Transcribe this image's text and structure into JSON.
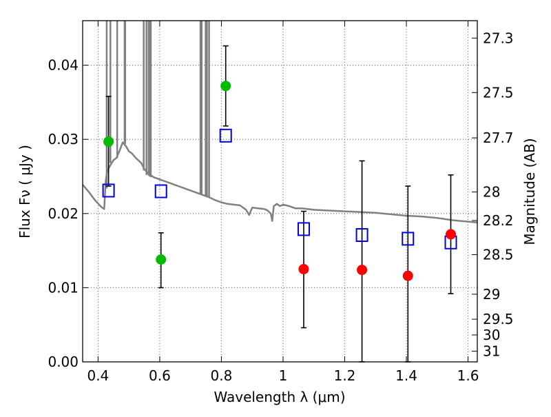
{
  "chart_data": {
    "type": "scatter",
    "title": "",
    "xlabel": "Wavelength  λ (μm)",
    "ylabel": "Flux  Fν  ( μJy )",
    "y2label": "Magnitude (AB)",
    "xlim": [
      0.35,
      1.63
    ],
    "ylim": [
      0.0,
      0.046
    ],
    "grid": true,
    "x_ticks": [
      {
        "value": 0.4,
        "label": "0.4"
      },
      {
        "value": 0.6,
        "label": "0.6"
      },
      {
        "value": 0.8,
        "label": "0.8"
      },
      {
        "value": 1.0,
        "label": "1"
      },
      {
        "value": 1.2,
        "label": "1.2"
      },
      {
        "value": 1.4,
        "label": "1.4"
      },
      {
        "value": 1.6,
        "label": "1.6"
      }
    ],
    "y_ticks": [
      {
        "value": 0.0,
        "label": "0.00"
      },
      {
        "value": 0.01,
        "label": "0.01"
      },
      {
        "value": 0.02,
        "label": "0.02"
      },
      {
        "value": 0.03,
        "label": "0.03"
      },
      {
        "value": 0.04,
        "label": "0.04"
      }
    ],
    "y2_ticks": [
      {
        "value": 27.3,
        "label": "27.3"
      },
      {
        "value": 27.5,
        "label": "27.5"
      },
      {
        "value": 27.7,
        "label": "27.7"
      },
      {
        "value": 28.0,
        "label": "28"
      },
      {
        "value": 28.2,
        "label": "28.2"
      },
      {
        "value": 28.5,
        "label": "28.5"
      },
      {
        "value": 29.0,
        "label": "29"
      },
      {
        "value": 29.5,
        "label": "29.5"
      },
      {
        "value": 30.0,
        "label": "30"
      },
      {
        "value": 31.0,
        "label": "31"
      }
    ],
    "colors": {
      "template": "#808080",
      "optical": "#00bb00",
      "nir": "#ff0000",
      "model": "#0000dd",
      "errorbar": "#000000",
      "grid": "#555555"
    },
    "series": [
      {
        "kind": "line",
        "points": [
          [
            0.35,
            0.0239
          ],
          [
            0.37,
            0.0229
          ],
          [
            0.39,
            0.0218
          ],
          [
            0.41,
            0.0209
          ],
          [
            0.42,
            0.0206
          ],
          [
            0.425,
            0.0245
          ],
          [
            0.43,
            0.0258
          ],
          [
            0.44,
            0.0265
          ],
          [
            0.45,
            0.0272
          ],
          [
            0.46,
            0.0275
          ],
          [
            0.47,
            0.0285
          ],
          [
            0.48,
            0.0296
          ],
          [
            0.49,
            0.0291
          ],
          [
            0.5,
            0.0284
          ],
          [
            0.51,
            0.0281
          ],
          [
            0.52,
            0.0276
          ],
          [
            0.53,
            0.0272
          ],
          [
            0.54,
            0.0268
          ],
          [
            0.55,
            0.026
          ],
          [
            0.56,
            0.0255
          ],
          [
            0.57,
            0.0252
          ],
          [
            0.58,
            0.0249
          ],
          [
            0.6,
            0.0246
          ],
          [
            0.62,
            0.0243
          ],
          [
            0.64,
            0.024
          ],
          [
            0.66,
            0.0237
          ],
          [
            0.68,
            0.0234
          ],
          [
            0.7,
            0.0231
          ],
          [
            0.72,
            0.0228
          ],
          [
            0.74,
            0.0225
          ],
          [
            0.76,
            0.0222
          ],
          [
            0.78,
            0.0218
          ],
          [
            0.8,
            0.0215
          ],
          [
            0.82,
            0.0213
          ],
          [
            0.84,
            0.0212
          ],
          [
            0.86,
            0.0211
          ],
          [
            0.88,
            0.0205
          ],
          [
            0.89,
            0.0198
          ],
          [
            0.9,
            0.0208
          ],
          [
            0.92,
            0.0207
          ],
          [
            0.94,
            0.0206
          ],
          [
            0.95,
            0.0204
          ],
          [
            0.96,
            0.02
          ],
          [
            0.965,
            0.019
          ],
          [
            0.97,
            0.021
          ],
          [
            0.98,
            0.0213
          ],
          [
            0.99,
            0.021
          ],
          [
            1.0,
            0.0212
          ],
          [
            1.02,
            0.021
          ],
          [
            1.04,
            0.0207
          ],
          [
            1.06,
            0.0207
          ],
          [
            1.08,
            0.0206
          ],
          [
            1.1,
            0.0205
          ],
          [
            1.15,
            0.0204
          ],
          [
            1.2,
            0.0203
          ],
          [
            1.25,
            0.0202
          ],
          [
            1.3,
            0.0201
          ],
          [
            1.35,
            0.0199
          ],
          [
            1.4,
            0.0197
          ],
          [
            1.45,
            0.0196
          ],
          [
            1.5,
            0.0194
          ],
          [
            1.55,
            0.0191
          ],
          [
            1.6,
            0.0189
          ],
          [
            1.63,
            0.0188
          ]
        ],
        "spikes": [
          [
            0.428,
            0.0234
          ],
          [
            0.44,
            0.0268
          ],
          [
            0.462,
            0.0275
          ],
          [
            0.486,
            0.0296
          ],
          [
            0.488,
            0.0294
          ],
          [
            0.548,
            0.0258
          ],
          [
            0.557,
            0.0252
          ],
          [
            0.564,
            0.0251
          ],
          [
            0.568,
            0.025
          ],
          [
            0.571,
            0.0249
          ],
          [
            0.732,
            0.0226
          ],
          [
            0.736,
            0.0226
          ],
          [
            0.749,
            0.0224
          ],
          [
            0.753,
            0.0224
          ],
          [
            0.76,
            0.0223
          ]
        ]
      },
      {
        "kind": "errorbar",
        "points": [
          {
            "x": 0.434,
            "y": 0.0297,
            "lo": 0.0237,
            "hi": 0.0358
          },
          {
            "x": 0.604,
            "y": 0.0138,
            "lo": 0.01,
            "hi": 0.0174
          },
          {
            "x": 0.814,
            "y": 0.0372,
            "lo": 0.0318,
            "hi": 0.0426
          },
          {
            "x": 1.067,
            "y": 0.0125,
            "lo": 0.0046,
            "hi": 0.0203
          },
          {
            "x": 1.256,
            "y": 0.0124,
            "lo": 0.0,
            "hi": 0.0271
          },
          {
            "x": 1.405,
            "y": 0.0116,
            "lo": 0.0,
            "hi": 0.0237
          },
          {
            "x": 1.544,
            "y": 0.0172,
            "lo": 0.0092,
            "hi": 0.0252
          }
        ]
      },
      {
        "kind": "points-optical",
        "points": [
          [
            0.434,
            0.0297
          ],
          [
            0.604,
            0.0138
          ],
          [
            0.814,
            0.0372
          ]
        ]
      },
      {
        "kind": "points-nir",
        "points": [
          [
            1.067,
            0.0125
          ],
          [
            1.256,
            0.0124
          ],
          [
            1.405,
            0.0116
          ],
          [
            1.544,
            0.0172
          ]
        ]
      },
      {
        "kind": "points-model",
        "points": [
          [
            0.434,
            0.0231
          ],
          [
            0.604,
            0.023
          ],
          [
            0.814,
            0.0305
          ],
          [
            1.067,
            0.0179
          ],
          [
            1.256,
            0.0171
          ],
          [
            1.405,
            0.0166
          ],
          [
            1.544,
            0.0161
          ]
        ]
      }
    ]
  }
}
